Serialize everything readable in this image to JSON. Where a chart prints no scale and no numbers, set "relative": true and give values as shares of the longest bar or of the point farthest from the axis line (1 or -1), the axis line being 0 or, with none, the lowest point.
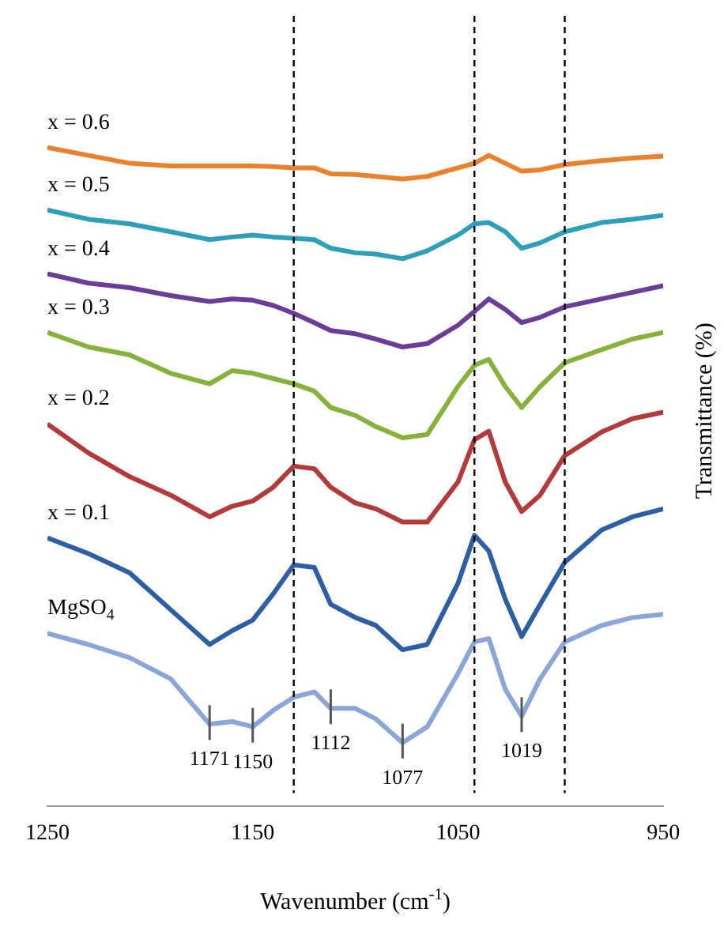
{
  "chart_data": {
    "type": "line",
    "xlabel": "Wavenumber (cm$^{-1}$)",
    "ylabel": "Transmittance (%)",
    "relative": true,
    "xlim": [
      1250,
      950
    ],
    "xticks": [
      1250,
      1150,
      1050,
      950
    ],
    "grid": false,
    "legend": false,
    "marker": "none",
    "line_style": "solid",
    "x": [
      1250,
      1230,
      1210,
      1190,
      1171,
      1160,
      1150,
      1140,
      1130,
      1120,
      1112,
      1100,
      1090,
      1077,
      1065,
      1050,
      1042,
      1035,
      1027,
      1019,
      1010,
      998,
      980,
      965,
      950
    ],
    "series": [
      {
        "name": "x = 0.6",
        "color": "#e8822f",
        "values": [
          1.0,
          0.988,
          0.976,
          0.972,
          0.972,
          0.972,
          0.972,
          0.971,
          0.969,
          0.969,
          0.96,
          0.959,
          0.956,
          0.952,
          0.956,
          0.969,
          0.976,
          0.988,
          0.976,
          0.964,
          0.966,
          0.974,
          0.98,
          0.984,
          0.987
        ]
      },
      {
        "name": "x = 0.5",
        "color": "#2f9fb8",
        "values": [
          0.905,
          0.891,
          0.884,
          0.872,
          0.86,
          0.864,
          0.867,
          0.864,
          0.862,
          0.86,
          0.847,
          0.84,
          0.838,
          0.831,
          0.843,
          0.867,
          0.884,
          0.886,
          0.872,
          0.847,
          0.855,
          0.872,
          0.886,
          0.891,
          0.897
        ]
      },
      {
        "name": "x = 0.4",
        "color": "#6a3d96",
        "values": [
          0.808,
          0.794,
          0.787,
          0.775,
          0.766,
          0.77,
          0.768,
          0.76,
          0.748,
          0.734,
          0.722,
          0.717,
          0.709,
          0.697,
          0.702,
          0.73,
          0.751,
          0.77,
          0.754,
          0.734,
          0.742,
          0.758,
          0.77,
          0.78,
          0.79
        ]
      },
      {
        "name": "x = 0.3",
        "color": "#86b13a",
        "values": [
          0.719,
          0.697,
          0.685,
          0.657,
          0.641,
          0.661,
          0.657,
          0.649,
          0.641,
          0.63,
          0.605,
          0.593,
          0.576,
          0.559,
          0.564,
          0.637,
          0.669,
          0.678,
          0.637,
          0.605,
          0.637,
          0.673,
          0.693,
          0.709,
          0.719
        ]
      },
      {
        "name": "x = 0.2",
        "color": "#b23a3a",
        "values": [
          0.58,
          0.536,
          0.5,
          0.472,
          0.439,
          0.455,
          0.463,
          0.484,
          0.516,
          0.512,
          0.484,
          0.46,
          0.451,
          0.431,
          0.431,
          0.492,
          0.556,
          0.569,
          0.492,
          0.447,
          0.472,
          0.532,
          0.568,
          0.588,
          0.598
        ]
      },
      {
        "name": "x = 0.1",
        "color": "#2f5fa3",
        "values": [
          0.407,
          0.383,
          0.354,
          0.298,
          0.245,
          0.266,
          0.282,
          0.322,
          0.366,
          0.362,
          0.306,
          0.286,
          0.274,
          0.237,
          0.245,
          0.338,
          0.411,
          0.387,
          0.314,
          0.257,
          0.306,
          0.37,
          0.419,
          0.439,
          0.451
        ]
      },
      {
        "name": "MgSO$_{4}$",
        "color": "#8ba5d6",
        "values": [
          0.262,
          0.245,
          0.225,
          0.193,
          0.124,
          0.128,
          0.12,
          0.145,
          0.165,
          0.173,
          0.148,
          0.148,
          0.132,
          0.096,
          0.12,
          0.201,
          0.249,
          0.254,
          0.177,
          0.136,
          0.193,
          0.249,
          0.274,
          0.286,
          0.291
        ]
      }
    ],
    "ref_lines": [
      {
        "axis": "x",
        "value": 1130,
        "line_style": "dashed",
        "color": "#000000"
      },
      {
        "axis": "x",
        "value": 1042,
        "line_style": "dashed",
        "color": "#000000"
      },
      {
        "axis": "x",
        "value": 998,
        "line_style": "dashed",
        "color": "#000000"
      }
    ],
    "annotations": [
      {
        "text": "1171",
        "x": 1171,
        "y": 0.124
      },
      {
        "text": "1150",
        "x": 1150,
        "y": 0.12
      },
      {
        "text": "1112",
        "x": 1112,
        "y": 0.148
      },
      {
        "text": "1077",
        "x": 1077,
        "y": 0.096
      },
      {
        "text": "1019",
        "x": 1019,
        "y": 0.136
      }
    ]
  }
}
